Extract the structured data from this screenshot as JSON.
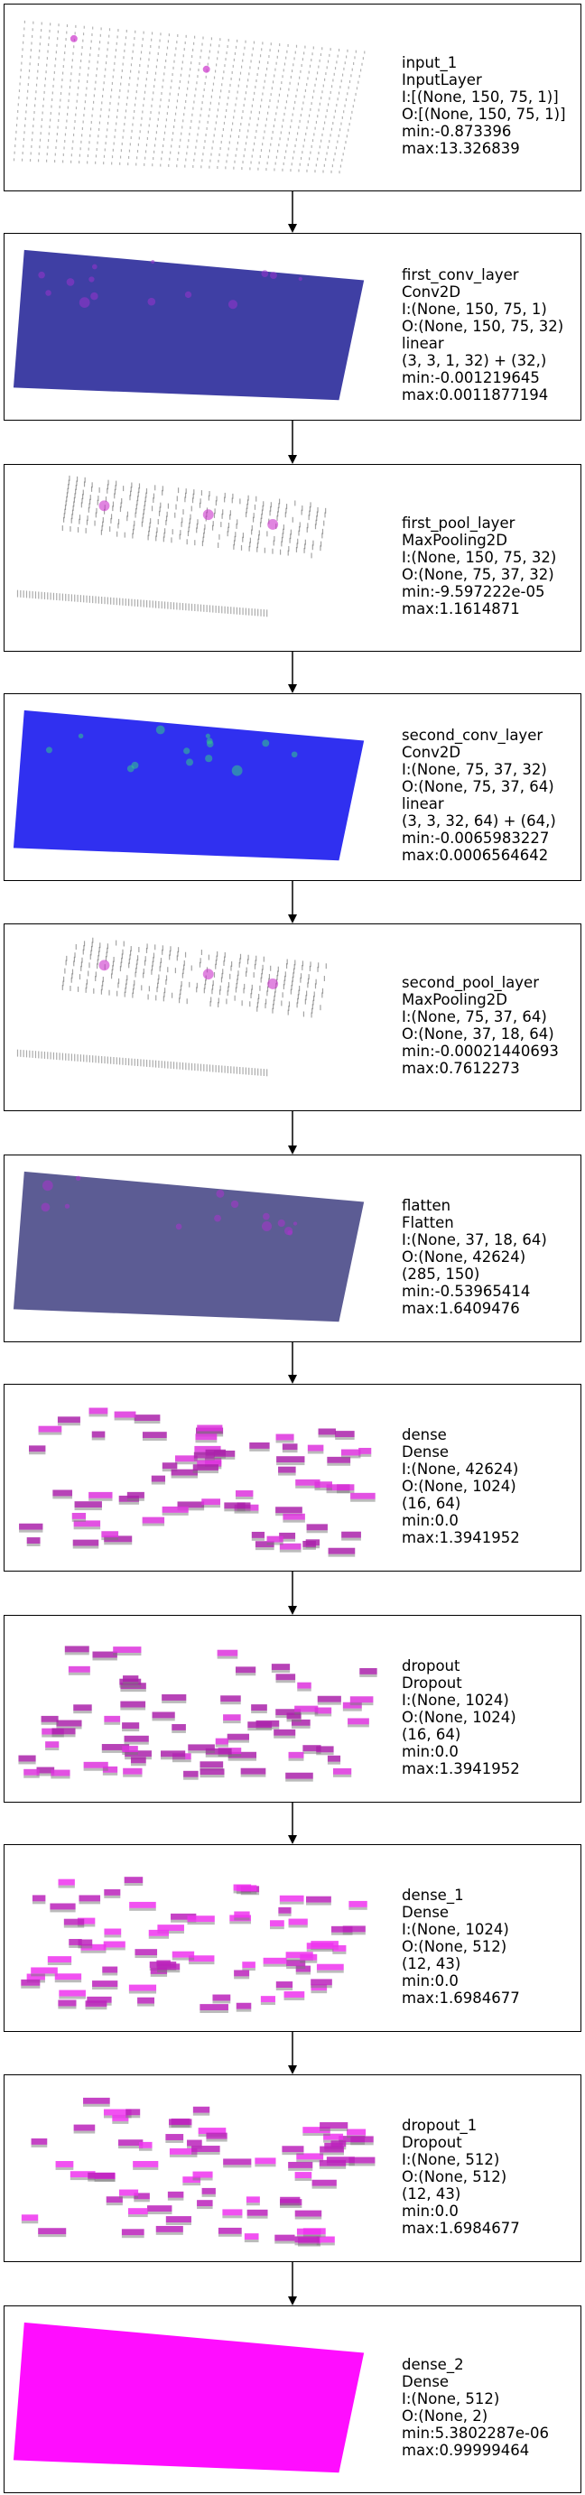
{
  "layers": [
    {
      "lines": [
        "input_1",
        "InputLayer",
        "I:[(None, 150, 75, 1)]",
        "O:[(None, 150, 75, 1)]",
        "min:-0.873396",
        "max:13.326839"
      ],
      "viz": {
        "kind": "dots",
        "color": "#777",
        "accent": "#cc33cc"
      }
    },
    {
      "lines": [
        "first_conv_layer",
        "Conv2D",
        "I:(None, 150, 75, 1)",
        "O:(None, 150, 75, 32)",
        "linear",
        "(3, 3, 1, 32) + (32,)",
        "min:-0.001219645",
        "max:0.0011877194"
      ],
      "viz": {
        "kind": "fill",
        "color": "#2a2a9a",
        "accent": "#9933cc"
      }
    },
    {
      "lines": [
        "first_pool_layer",
        "MaxPooling2D",
        "I:(None, 150, 75, 32)",
        "O:(None, 75, 37, 32)",
        "min:-9.597222e-05",
        "max:1.1614871"
      ],
      "viz": {
        "kind": "pool",
        "color": "#666",
        "accent": "#cc33cc"
      }
    },
    {
      "lines": [
        "second_conv_layer",
        "Conv2D",
        "I:(None, 75, 37, 32)",
        "O:(None, 75, 37, 64)",
        "linear",
        "(3, 3, 32, 64) + (64,)",
        "min:-0.0065983227",
        "max:0.0006564642"
      ],
      "viz": {
        "kind": "fill",
        "color": "#1a1aee",
        "accent": "#33cc88"
      }
    },
    {
      "lines": [
        "second_pool_layer",
        "MaxPooling2D",
        "I:(None, 75, 37, 64)",
        "O:(None, 37, 18, 64)",
        "min:-0.00021440693",
        "max:0.7612273"
      ],
      "viz": {
        "kind": "pool",
        "color": "#666",
        "accent": "#cc33cc"
      }
    },
    {
      "lines": [
        "flatten",
        "Flatten",
        "I:(None, 37, 18, 64)",
        "O:(None, 42624)",
        "(285, 150)",
        "min:-0.53965414",
        "max:1.6409476"
      ],
      "viz": {
        "kind": "fill",
        "color": "#4a4a88",
        "accent": "#aa33cc"
      }
    },
    {
      "lines": [
        "dense",
        "Dense",
        "I:(None, 42624)",
        "O:(None, 1024)",
        "(16, 64)",
        "min:0.0",
        "max:1.3941952"
      ],
      "viz": {
        "kind": "blocks",
        "color": "#aa22aa",
        "accent": "#dd33dd"
      }
    },
    {
      "lines": [
        "dropout",
        "Dropout",
        "I:(None, 1024)",
        "O:(None, 1024)",
        "(16, 64)",
        "min:0.0",
        "max:1.3941952"
      ],
      "viz": {
        "kind": "blocks",
        "color": "#aa22aa",
        "accent": "#dd33dd"
      }
    },
    {
      "lines": [
        "dense_1",
        "Dense",
        "I:(None, 1024)",
        "O:(None, 512)",
        "(12, 43)",
        "min:0.0",
        "max:1.6984677"
      ],
      "viz": {
        "kind": "blocks",
        "color": "#bb22bb",
        "accent": "#ee33ee"
      }
    },
    {
      "lines": [
        "dropout_1",
        "Dropout",
        "I:(None, 512)",
        "O:(None, 512)",
        "(12, 43)",
        "min:0.0",
        "max:1.6984677"
      ],
      "viz": {
        "kind": "blocks",
        "color": "#bb22bb",
        "accent": "#ee33ee"
      }
    },
    {
      "lines": [
        "dense_2",
        "Dense",
        "I:(None, 512)",
        "O:(None, 2)",
        "min:5.3802287e-06",
        "max:0.99999464"
      ],
      "viz": {
        "kind": "solid",
        "color": "#ff00ff",
        "accent": "#ff00ff"
      }
    }
  ]
}
